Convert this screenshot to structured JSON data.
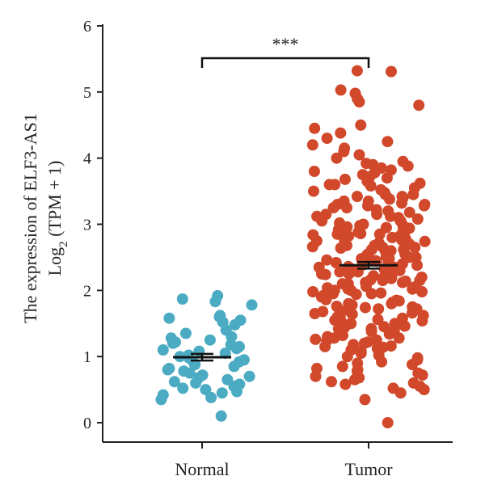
{
  "chart_data": {
    "type": "scatter",
    "title": "",
    "ylabel_line1": "The expression of ELF3-AS1",
    "ylabel_line2_prefix": "Log",
    "ylabel_line2_subscript": "2",
    "ylabel_line2_suffix": " (TPM + 1)",
    "xlabel": "",
    "ylim": [
      0,
      6
    ],
    "yticks": [
      "0",
      "1",
      "2",
      "3",
      "4",
      "5",
      "6"
    ],
    "categories": [
      "Normal",
      "Tumor"
    ],
    "significance": "***",
    "colors": {
      "Normal": "#4aabc3",
      "Tumor": "#d1482b",
      "axis": "#222222",
      "errorbar": "#111111"
    },
    "groups": [
      {
        "category": "Normal",
        "mean": 0.99,
        "sem": 0.05,
        "values": [
          1.92,
          1.87,
          1.83,
          1.78,
          1.62,
          1.6,
          1.58,
          1.55,
          1.52,
          1.48,
          1.4,
          1.35,
          1.3,
          1.28,
          1.25,
          1.22,
          1.2,
          1.18,
          1.15,
          1.12,
          1.1,
          1.08,
          1.05,
          1.02,
          1.0,
          0.98,
          0.95,
          0.92,
          0.9,
          0.88,
          0.85,
          0.82,
          0.8,
          0.78,
          0.75,
          0.72,
          0.7,
          0.68,
          0.65,
          0.62,
          0.6,
          0.58,
          0.55,
          0.52,
          0.5,
          0.47,
          0.45,
          0.42,
          0.38,
          0.35,
          0.1
        ]
      },
      {
        "category": "Tumor",
        "mean": 2.38,
        "sem": 0.05,
        "values": [
          5.32,
          5.31,
          5.03,
          4.98,
          4.9,
          4.85,
          4.8,
          4.5,
          4.45,
          4.38,
          4.3,
          4.25,
          4.2,
          4.15,
          4.1,
          4.05,
          4.0,
          3.95,
          3.92,
          3.9,
          3.88,
          3.85,
          3.82,
          3.8,
          3.78,
          3.75,
          3.72,
          3.7,
          3.68,
          3.65,
          3.62,
          3.6,
          3.58,
          3.55,
          3.52,
          3.5,
          3.48,
          3.45,
          3.42,
          3.4,
          3.38,
          3.35,
          3.32,
          3.3,
          3.28,
          3.25,
          3.22,
          3.2,
          3.18,
          3.15,
          3.12,
          3.1,
          3.08,
          3.05,
          3.02,
          3.0,
          2.98,
          2.96,
          2.94,
          2.92,
          2.9,
          2.88,
          2.86,
          2.84,
          2.82,
          2.8,
          2.78,
          2.76,
          2.74,
          2.72,
          2.7,
          2.68,
          2.66,
          2.64,
          2.62,
          2.6,
          2.58,
          2.56,
          2.54,
          2.52,
          2.5,
          2.48,
          2.46,
          2.44,
          2.42,
          2.4,
          2.38,
          2.36,
          2.34,
          2.32,
          2.3,
          2.28,
          2.26,
          2.24,
          2.22,
          2.2,
          2.18,
          2.16,
          2.14,
          2.12,
          2.1,
          2.08,
          2.06,
          2.04,
          2.02,
          2.0,
          1.98,
          1.96,
          1.94,
          1.92,
          1.9,
          1.88,
          1.86,
          1.84,
          1.82,
          1.8,
          1.78,
          1.76,
          1.74,
          1.72,
          1.7,
          1.68,
          1.66,
          1.64,
          1.62,
          1.6,
          1.58,
          1.56,
          1.54,
          1.52,
          1.5,
          1.48,
          1.46,
          1.44,
          1.42,
          1.4,
          1.38,
          1.36,
          1.34,
          1.32,
          1.3,
          1.28,
          1.26,
          1.24,
          1.22,
          1.2,
          1.18,
          1.16,
          1.14,
          1.12,
          1.1,
          1.08,
          1.05,
          1.02,
          1.0,
          0.98,
          0.95,
          0.92,
          0.9,
          0.88,
          0.85,
          0.82,
          0.8,
          0.78,
          0.75,
          0.72,
          0.7,
          0.68,
          0.65,
          0.62,
          0.6,
          0.58,
          0.55,
          0.52,
          0.5,
          0.45,
          0.35,
          0.0,
          3.45,
          3.25,
          3.05,
          2.85,
          2.65,
          2.45,
          2.25,
          2.05,
          1.85,
          1.65,
          2.95,
          2.75,
          2.55,
          2.35,
          2.15,
          1.95,
          1.75,
          1.55,
          3.15,
          2.85,
          2.65,
          2.4,
          2.1,
          1.8,
          2.5,
          2.3,
          2.6,
          2.2,
          2.0,
          2.7,
          2.9,
          3.1,
          3.3,
          3.6,
          1.9,
          1.7,
          1.5,
          2.45,
          2.55,
          2.35,
          2.25,
          2.15,
          2.05,
          1.95,
          2.75,
          2.85,
          3.05,
          3.35,
          1.45,
          1.25,
          1.15,
          2.62,
          2.48,
          2.32,
          2.18,
          2.02,
          1.88,
          1.72,
          2.68,
          2.82,
          2.98,
          3.12,
          3.28,
          3.42,
          1.58,
          1.42,
          1.28,
          2.52,
          2.38,
          2.28,
          2.12,
          1.98,
          2.42
        ]
      }
    ]
  }
}
